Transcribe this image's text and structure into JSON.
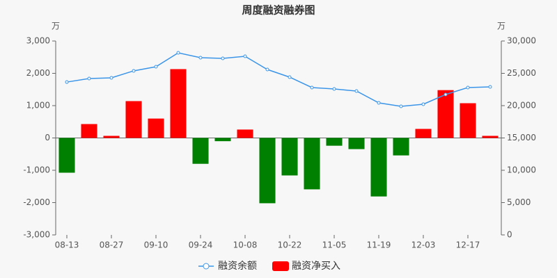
{
  "chart_data": {
    "type": "bar-line",
    "title": "周度融资融券图",
    "y_unit": "万",
    "y2_unit": "万",
    "categories": [
      "08-13",
      null,
      "08-27",
      null,
      "09-10",
      null,
      "09-24",
      null,
      "10-08",
      null,
      "10-22",
      null,
      "11-05",
      null,
      "11-19",
      null,
      "12-03",
      null,
      "12-17",
      null
    ],
    "series": [
      {
        "name": "融资余额",
        "type": "line",
        "axis": "y2",
        "color": "#3a95e8",
        "values": [
          23650,
          24190,
          24300,
          25380,
          26020,
          28170,
          27420,
          27310,
          27630,
          25590,
          24410,
          22800,
          22580,
          22260,
          20430,
          19890,
          20220,
          21720,
          22800,
          22900
        ]
      },
      {
        "name": "融资净买入",
        "type": "bar",
        "color": "#ff0000",
        "negative_color": "#008000",
        "values": [
          -1075,
          430,
          65,
          1140,
          600,
          2130,
          -800,
          -100,
          260,
          -2020,
          -1160,
          -1590,
          -240,
          -345,
          -1810,
          -540,
          280,
          1480,
          1075,
          65
        ]
      }
    ],
    "ylim": [
      -3000,
      3000
    ],
    "yticks": [
      {
        "value": -3000,
        "label": "-3,000"
      },
      {
        "value": -2000,
        "label": "-2,000"
      },
      {
        "value": -1000,
        "label": "-1,000"
      },
      0,
      {
        "value": 1000,
        "label": "1,000"
      },
      {
        "value": 2000,
        "label": "2,000"
      },
      {
        "value": 3000,
        "label": "3,000"
      }
    ],
    "y2lim": [
      0,
      30000
    ],
    "y2ticks": [
      0,
      {
        "value": 5000,
        "label": "5,000"
      },
      {
        "value": 10000,
        "label": "10,000"
      },
      {
        "value": 15000,
        "label": "15,000"
      },
      {
        "value": 20000,
        "label": "20,000"
      },
      {
        "value": 25000,
        "label": "25,000"
      },
      {
        "value": 30000,
        "label": "30,000"
      }
    ],
    "grid": false,
    "legend": "bottom"
  }
}
